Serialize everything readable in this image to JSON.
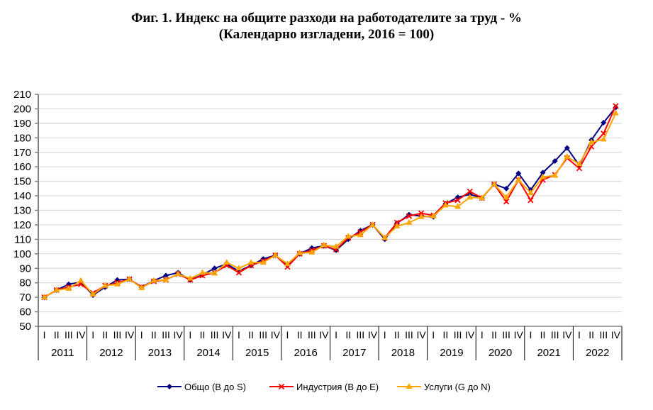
{
  "title_line1": "Фиг. 1. Индекс на общите разходи на работодателите за труд - %",
  "title_line2": "(Календарно изгладени, 2016 = 100)",
  "chart_data": {
    "type": "line",
    "title": "Фиг. 1. Индекс на общите разходи на работодателите за труд - % (Календарно изгладени, 2016 = 100)",
    "xlabel": "",
    "ylabel": "",
    "ylim": [
      50,
      210
    ],
    "yticks": [
      50,
      60,
      70,
      80,
      90,
      100,
      110,
      120,
      130,
      140,
      150,
      160,
      170,
      180,
      190,
      200,
      210
    ],
    "grid": true,
    "legend_position": "bottom",
    "quarters": [
      "I",
      "II",
      "III",
      "IV"
    ],
    "years": [
      "2011",
      "2012",
      "2013",
      "2014",
      "2015",
      "2016",
      "2017",
      "2018",
      "2019",
      "2020",
      "2021",
      "2022"
    ],
    "categories": [
      "2011 I",
      "2011 II",
      "2011 III",
      "2011 IV",
      "2012 I",
      "2012 II",
      "2012 III",
      "2012 IV",
      "2013 I",
      "2013 II",
      "2013 III",
      "2013 IV",
      "2014 I",
      "2014 II",
      "2014 III",
      "2014 IV",
      "2015 I",
      "2015 II",
      "2015 III",
      "2015 IV",
      "2016 I",
      "2016 II",
      "2016 III",
      "2016 IV",
      "2017 I",
      "2017 II",
      "2017 III",
      "2017 IV",
      "2018 I",
      "2018 II",
      "2018 III",
      "2018 IV",
      "2019 I",
      "2019 II",
      "2019 III",
      "2019 IV",
      "2020 I",
      "2020 II",
      "2020 III",
      "2020 IV",
      "2021 I",
      "2021 II",
      "2021 III",
      "2021 IV",
      "2022 I",
      "2022 II",
      "2022 III",
      "2022 IV"
    ],
    "series": [
      {
        "name": "Общо (B до S)",
        "color": "#000080",
        "marker": "diamond",
        "values": [
          70,
          75,
          79,
          80.5,
          71.5,
          77,
          82,
          82.5,
          77,
          81.5,
          85,
          87,
          82,
          85.5,
          90,
          93,
          88,
          92,
          96.5,
          99,
          92,
          100,
          104,
          105.5,
          102.5,
          110,
          116,
          120,
          110,
          121,
          127,
          126,
          125.5,
          134.5,
          139,
          141,
          138.5,
          148,
          145,
          155.5,
          144,
          156,
          164,
          173,
          161,
          178.5,
          190.5,
          201
        ]
      },
      {
        "name": "Индустрия (B до E)",
        "color": "#ff0000",
        "marker": "x",
        "values": [
          70,
          75,
          77,
          79,
          73,
          78,
          80,
          82.5,
          77,
          81,
          82,
          86,
          82,
          85,
          87,
          92,
          87,
          92,
          95,
          99,
          91,
          100,
          102.5,
          105.5,
          103,
          111,
          115,
          120,
          111,
          121.5,
          126,
          128,
          126.5,
          135,
          137,
          143,
          138.5,
          148,
          136,
          151,
          137,
          151,
          154.5,
          166,
          159,
          174,
          183,
          202
        ]
      },
      {
        "name": "Услуги (G до N)",
        "color": "#ffa500",
        "marker": "triangle",
        "values": [
          70,
          75,
          76,
          81.5,
          72,
          78,
          79,
          82.5,
          76.5,
          81.5,
          82,
          86,
          83,
          87,
          86.5,
          94,
          90,
          94,
          94,
          99,
          93,
          100.5,
          101,
          106,
          105,
          112,
          113,
          120,
          111,
          119,
          121.5,
          125.5,
          126,
          133.5,
          132.5,
          139,
          138.5,
          148,
          139,
          151,
          142,
          153,
          154,
          167,
          162,
          177,
          179,
          197
        ]
      }
    ]
  },
  "legend": [
    {
      "label": "Общо (B до S)",
      "color": "#000080"
    },
    {
      "label": "Индустрия (B до E)",
      "color": "#ff0000"
    },
    {
      "label": "Услуги (G до N)",
      "color": "#ffa500"
    }
  ]
}
